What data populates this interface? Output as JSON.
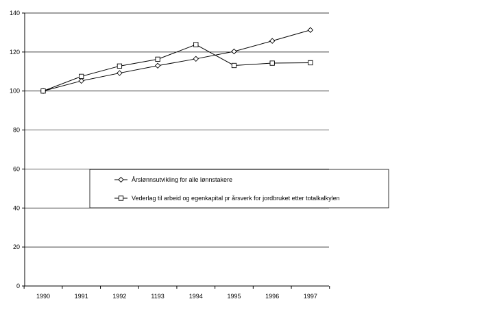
{
  "chart_data": {
    "type": "line",
    "categories": [
      "1990",
      "1991",
      "1992",
      "1193",
      "1994",
      "1995",
      "1996",
      "1997"
    ],
    "series": [
      {
        "name": "Årslønnsutvikling for alle lønnstakere",
        "marker": "diamond",
        "values": [
          100,
          105.2,
          109.2,
          113,
          116.5,
          120.3,
          125.7,
          131.3
        ]
      },
      {
        "name": "Vederlag til arbeid og egenkapital pr årsverk for jordbruket etter totalkalkylen",
        "marker": "square",
        "values": [
          100,
          107.5,
          112.8,
          116.3,
          123.8,
          113.1,
          114.3,
          114.5
        ]
      }
    ],
    "yticks": [
      0,
      20,
      40,
      60,
      80,
      100,
      120,
      140
    ],
    "ylim": [
      0,
      140
    ],
    "grid": "horizontal",
    "legend_position": "center",
    "line_color": "#000000"
  }
}
